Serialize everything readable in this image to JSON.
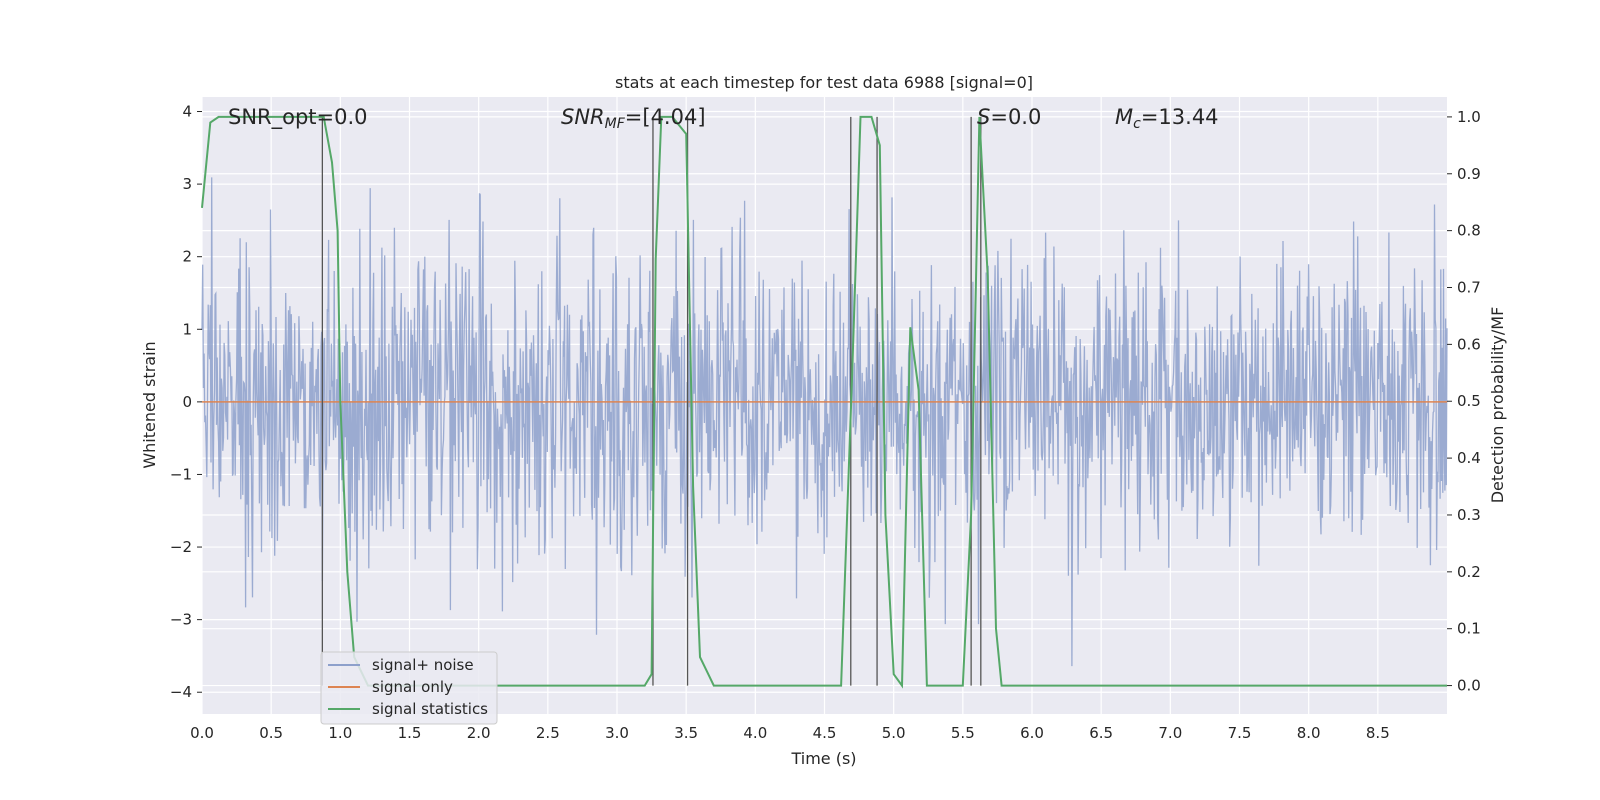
{
  "chart_data": {
    "type": "line",
    "title": "stats at each timestep for test data 6988 [signal=0]",
    "xlabel": "Time (s)",
    "ylabel": "Whitened strain",
    "y2label": "Detection probability/MF",
    "xlim": [
      0,
      9
    ],
    "ylim": [
      -4.3,
      4.2
    ],
    "y2lim": [
      -0.05,
      1.035
    ],
    "xticks": [
      "0.0",
      "0.5",
      "1.0",
      "1.5",
      "2.0",
      "2.5",
      "3.0",
      "3.5",
      "4.0",
      "4.5",
      "5.0",
      "5.5",
      "6.0",
      "6.5",
      "7.0",
      "7.5",
      "8.0",
      "8.5"
    ],
    "yticks": [
      "−4",
      "−3",
      "−2",
      "−1",
      "0",
      "1",
      "2",
      "3",
      "4"
    ],
    "y2ticks": [
      "0.0",
      "0.1",
      "0.2",
      "0.3",
      "0.4",
      "0.5",
      "0.6",
      "0.7",
      "0.8",
      "0.9",
      "1.0"
    ],
    "grid": true,
    "legend_position": "lower-left",
    "annotations": {
      "snr_opt": "SNR_opt=0.0",
      "snr_mf_pre": "SNR",
      "snr_mf_sub": "MF",
      "snr_mf_post": "=[4.04]",
      "s_pre": "S",
      "s_post": "=0.0",
      "mc_pre": "M",
      "mc_sub": "c",
      "mc_post": "=13.44"
    },
    "series": [
      {
        "name": "signal+ noise",
        "color": "#8da0cb",
        "kind": "noise",
        "amplitude_std": 1.0,
        "peak_range": [
          -3.7,
          3.4
        ]
      },
      {
        "name": "signal only",
        "color": "#dd8452",
        "kind": "constant",
        "value": 0.0
      },
      {
        "name": "signal statistics",
        "color": "#55a868",
        "axis": "right",
        "x": [
          0.0,
          0.06,
          0.12,
          0.2,
          0.4,
          0.6,
          0.8,
          0.88,
          0.94,
          0.98,
          1.0,
          1.05,
          1.1,
          1.2,
          1.5,
          2.0,
          2.5,
          3.0,
          3.2,
          3.25,
          3.28,
          3.32,
          3.4,
          3.5,
          3.55,
          3.6,
          3.66,
          3.7,
          4.0,
          4.5,
          4.62,
          4.7,
          4.76,
          4.84,
          4.9,
          4.94,
          5.0,
          5.06,
          5.12,
          5.18,
          5.24,
          5.3,
          5.5,
          5.56,
          5.62,
          5.68,
          5.74,
          5.78,
          6.0,
          7.0,
          8.0,
          9.0
        ],
        "y": [
          0.84,
          0.99,
          1.0,
          1.0,
          1.0,
          1.0,
          1.0,
          1.0,
          0.92,
          0.8,
          0.5,
          0.2,
          0.05,
          0.0,
          0.0,
          0.0,
          0.0,
          0.0,
          0.0,
          0.02,
          0.75,
          1.0,
          1.0,
          0.97,
          0.35,
          0.05,
          0.02,
          0.0,
          0.0,
          0.0,
          0.0,
          0.55,
          1.0,
          1.0,
          0.95,
          0.3,
          0.02,
          0.0,
          0.63,
          0.52,
          0.0,
          0.0,
          0.0,
          0.3,
          1.0,
          0.72,
          0.1,
          0.0,
          0.0,
          0.0,
          0.0,
          0.0
        ]
      }
    ],
    "vlines_x": [
      0.87,
      3.26,
      3.51,
      4.69,
      4.88,
      5.56,
      5.63
    ]
  }
}
